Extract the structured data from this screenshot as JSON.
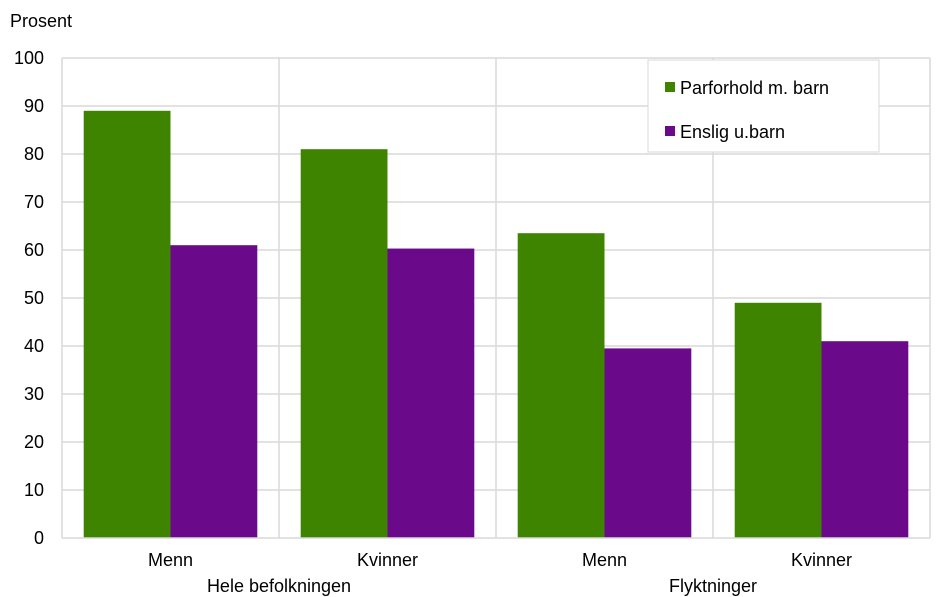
{
  "chart_data": {
    "type": "bar",
    "ylabel": "Prosent",
    "ylim": [
      0,
      100
    ],
    "yticks": [
      0,
      10,
      20,
      30,
      40,
      50,
      60,
      70,
      80,
      90,
      100
    ],
    "grid": true,
    "legend_position": "top-right",
    "groups": [
      {
        "label": "Hele befolkningen",
        "categories": [
          "Menn",
          "Kvinner"
        ]
      },
      {
        "label": "Flyktninger",
        "categories": [
          "Menn",
          "Kvinner"
        ]
      }
    ],
    "categories": [
      "Menn",
      "Kvinner",
      "Menn",
      "Kvinner"
    ],
    "series": [
      {
        "name": "Parforhold m. barn",
        "color": "#3f8400",
        "values": [
          89,
          81,
          63.5,
          49
        ]
      },
      {
        "name": "Enslig u.barn",
        "color": "#6a0a8a",
        "values": [
          61,
          60.3,
          39.5,
          41
        ]
      }
    ]
  }
}
